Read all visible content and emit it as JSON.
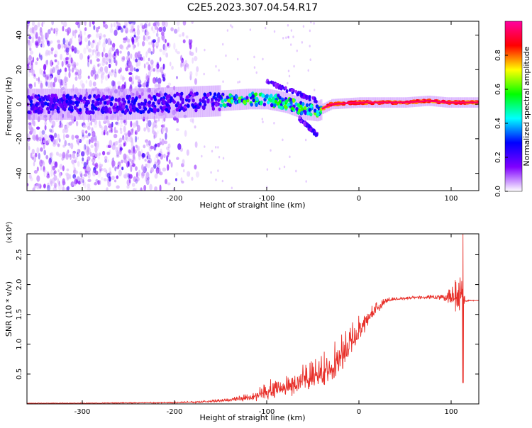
{
  "figure_title": "C2E5.2023.307.04.54.R17",
  "chart_data": [
    {
      "type": "heatmap",
      "xlabel": "Height of straight line (km)",
      "ylabel": "Frequency (Hz)",
      "xlim": [
        -360,
        130
      ],
      "ylim": [
        -50,
        48
      ],
      "x_ticks": [
        -300,
        -200,
        -100,
        0,
        100
      ],
      "y_ticks": [
        -40,
        -20,
        0,
        20,
        40
      ],
      "colorbar": {
        "label": "Normalized spectral amplitude",
        "range": [
          0.0,
          1.0
        ],
        "ticks": [
          "0.0",
          "0.2",
          "0.4",
          "0.6",
          "0.8"
        ],
        "tick_values": [
          0.0,
          0.2,
          0.4,
          0.6,
          0.8
        ],
        "colors": [
          "#ffffff",
          "#8000ff",
          "#0000ff",
          "#00ffff",
          "#00ff00",
          "#ffff00",
          "#ff0000",
          "#ff00a0"
        ]
      },
      "regions": [
        {
          "x": [
            -360,
            -210
          ],
          "y": [
            -50,
            48
          ],
          "level": 0.12,
          "description": "scattered broadband speckle"
        },
        {
          "x": [
            -210,
            -175
          ],
          "y": [
            -50,
            48
          ],
          "level": 0.05
        },
        {
          "x": [
            -360,
            -150
          ],
          "y": [
            -6,
            6
          ],
          "level": 0.25
        },
        {
          "x": [
            -150,
            -40
          ],
          "y": [
            -4,
            8
          ],
          "level": 0.55
        },
        {
          "x": [
            -40,
            130
          ],
          "y": [
            -1,
            3
          ],
          "level": 0.9
        }
      ],
      "ridge": {
        "x": [
          -360,
          -250,
          -200,
          -150,
          -120,
          -100,
          -80,
          -60,
          -45,
          -30,
          0,
          50,
          75,
          95,
          130
        ],
        "y": [
          0,
          0,
          1,
          2,
          3,
          3,
          1,
          -3,
          -4,
          0,
          1,
          1,
          2,
          1,
          1
        ]
      },
      "upper_branch": {
        "x": [
          -100,
          -85,
          -70,
          -55,
          -45
        ],
        "y": [
          13,
          10,
          7,
          4,
          2
        ]
      },
      "lower_branch": {
        "x": [
          -65,
          -55,
          -45
        ],
        "y": [
          -8,
          -13,
          -18
        ]
      }
    },
    {
      "type": "line",
      "xlabel": "Height of straight line (km)",
      "ylabel": "SNR (10 * v/v)",
      "y_multiplier": "(x10⁴)",
      "xlim": [
        -360,
        130
      ],
      "ylim": [
        0,
        2.85
      ],
      "x_ticks": [
        -300,
        -200,
        -100,
        0,
        100
      ],
      "y_ticks": [
        0.5,
        1.0,
        1.5,
        2.0,
        2.5
      ],
      "y_tick_labels": [
        "0.5",
        "1.0",
        "1.5",
        "2.0",
        "2.5"
      ],
      "color": "#e8302a",
      "envelope": {
        "x": [
          -360,
          -300,
          -250,
          -200,
          -170,
          -140,
          -110,
          -90,
          -70,
          -50,
          -30,
          -10,
          0,
          10,
          20,
          30,
          40,
          60,
          80,
          90,
          100,
          105,
          110,
          112,
          115,
          120,
          130
        ],
        "mean": [
          0.01,
          0.01,
          0.015,
          0.02,
          0.03,
          0.06,
          0.12,
          0.22,
          0.28,
          0.4,
          0.55,
          0.95,
          1.2,
          1.4,
          1.6,
          1.72,
          1.75,
          1.78,
          1.78,
          1.77,
          1.76,
          1.74,
          1.72,
          1.7,
          1.72,
          1.73,
          1.73
        ],
        "amp": [
          0.005,
          0.008,
          0.01,
          0.015,
          0.02,
          0.04,
          0.12,
          0.2,
          0.25,
          0.3,
          0.35,
          0.35,
          0.25,
          0.2,
          0.12,
          0.06,
          0.03,
          0.03,
          0.04,
          0.06,
          0.15,
          0.3,
          0.6,
          0.6,
          0.02,
          0.01,
          0.01
        ]
      },
      "features": [
        {
          "x": 113,
          "y": 2.85,
          "label": "spike max"
        },
        {
          "x": 113,
          "y": 0.35,
          "label": "spike min"
        }
      ]
    }
  ]
}
